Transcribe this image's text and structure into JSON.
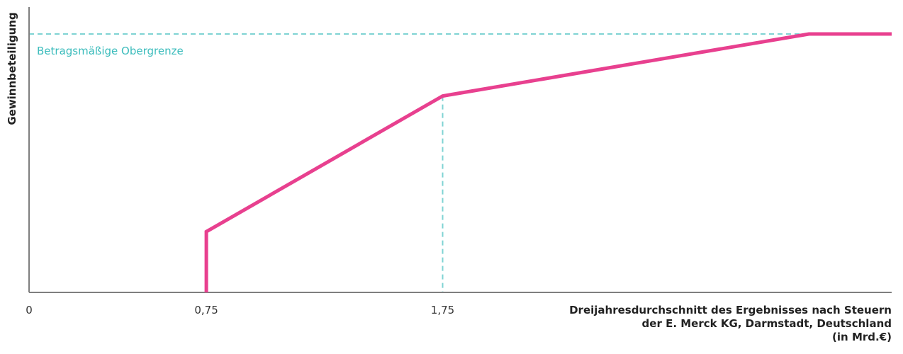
{
  "chart_data": {
    "type": "line",
    "title": "",
    "xlabel_lines": [
      "Dreijahresdurchschnitt des Ergebnisses nach Steuern",
      "der E. Merck KG, Darmstadt, Deutschland",
      "(in Mrd.€)"
    ],
    "ylabel": "Gewinnbeteiligung",
    "x_ticks": [
      {
        "value": 0,
        "label": "0"
      },
      {
        "value": 0.75,
        "label": "0,75"
      },
      {
        "value": 1.75,
        "label": "1,75"
      }
    ],
    "xlim": [
      0,
      3.65
    ],
    "ylim": [
      0,
      1.0
    ],
    "series": [
      {
        "color": "#e8408f",
        "points": [
          {
            "x": 0.75,
            "y": 0
          },
          {
            "x": 0.75,
            "y": 0.235
          },
          {
            "x": 1.75,
            "y": 0.76
          },
          {
            "x": 3.3,
            "y": 1.0
          },
          {
            "x": 3.65,
            "y": 1.0
          }
        ]
      }
    ],
    "reference_lines": [
      {
        "orientation": "horizontal",
        "y": 1.0,
        "label": "Betragsmäßige Obergrenze",
        "color": "#7fd3d3"
      },
      {
        "orientation": "vertical",
        "x": 1.75,
        "y_to": 0.76,
        "color": "#7fd3d3"
      }
    ],
    "grid": false,
    "legend": "none"
  },
  "colors": {
    "axis": "#7f7f7f",
    "line": "#e8408f",
    "reference": "#7fd3d3",
    "reference_text": "#3bbcbc"
  }
}
